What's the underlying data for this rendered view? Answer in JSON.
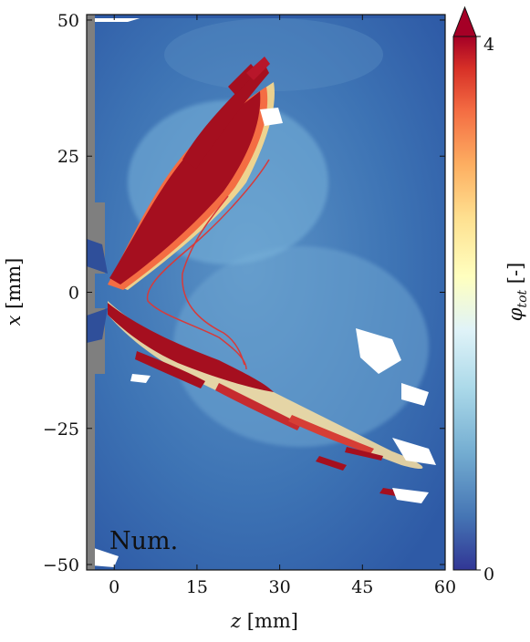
{
  "chart_data": {
    "type": "heatmap",
    "xlabel_var": "z",
    "xlabel_unit": "[mm]",
    "ylabel_var": "x",
    "ylabel_unit": "[mm]",
    "xlim": [
      -5,
      60
    ],
    "ylim": [
      -51,
      51
    ],
    "x_ticks": [
      0,
      15,
      30,
      45,
      60
    ],
    "y_ticks": [
      -50,
      -25,
      0,
      25,
      50
    ],
    "annotation": "Num.",
    "colorbar": {
      "label_var": "φ",
      "label_sub": "tot",
      "label_unit": "[-]",
      "min": 0,
      "max": 4,
      "tick_labels": [
        "0",
        "4"
      ],
      "extend": "max",
      "colormap": "RdYlBu_r"
    },
    "colors": {
      "background_field": "#3f73b4",
      "high": "#a50f1f",
      "wall": "#7f7f7f",
      "contour": "#d73a3a"
    }
  }
}
